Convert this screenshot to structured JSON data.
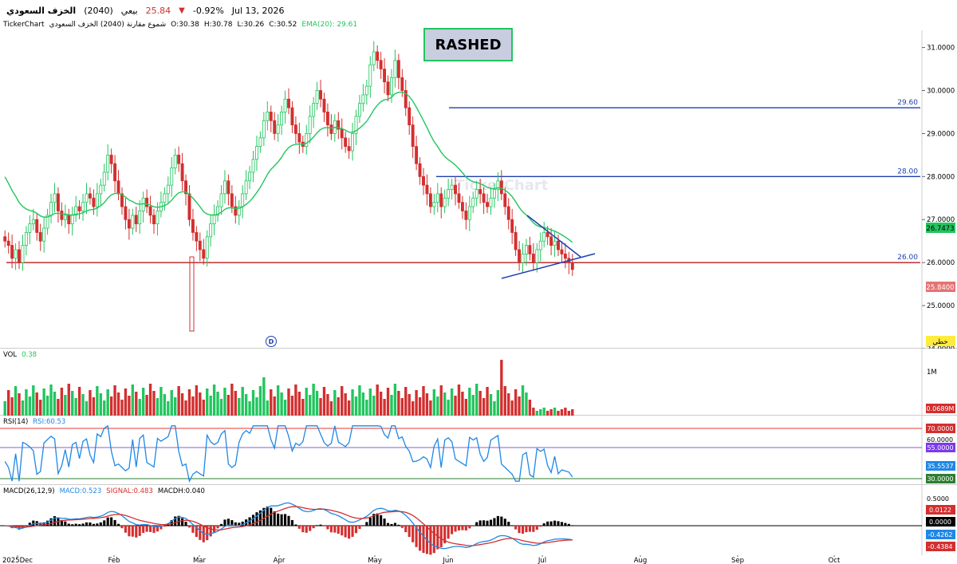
{
  "header": {
    "name": "الخزف السعودي",
    "code": "(2040)",
    "action_label": "بيعي",
    "price": "25.84",
    "change_pct": "-0.92%",
    "date": "Jul 13, 2026"
  },
  "subheader": {
    "source": "TickerChart",
    "series_desc": "شموع مقارنة (2040) الخزف السعودي",
    "open": "O:30.38",
    "high": "H:30.78",
    "low": "L:30.26",
    "close": "C:30.52",
    "ema": "EMA(20): 29.61"
  },
  "annotation": {
    "rashed": "RASHED",
    "d_marker": "D",
    "watermark": "TickerChart"
  },
  "colors": {
    "up": "#22c55e",
    "down": "#d32f2f",
    "ema": "#22c55e",
    "lines": "#1e40af",
    "support": "#b91c1c"
  },
  "price_axis": {
    "ticks": [
      "31.0000",
      "30.0000",
      "29.0000",
      "28.0000",
      "27.0000",
      "26.0000",
      "25.0000",
      "24.0000"
    ],
    "badges": {
      "ema": "26.7473",
      "last": "25.8400",
      "mode": "خطي"
    }
  },
  "level_labels": [
    "29.60",
    "28.00",
    "26.00"
  ],
  "volume": {
    "label": "VOL",
    "value": "0.38",
    "tick": "1M",
    "badge": "0.0689M"
  },
  "rsi": {
    "label": "RSI(14)",
    "value": "RSI:60.53",
    "ticks": [
      "70.0000",
      "60.0000",
      "55.0000",
      "35.5537",
      "30.0000"
    ]
  },
  "macd": {
    "label": "MACD(26,12,9)",
    "macd_value": "MACD:0.523",
    "signal_value": "SIGNAL:0.483",
    "hist_value": "MACDH:0.040",
    "ticks": [
      "0.5000",
      "0.0122",
      "0.0000",
      "-0.4262",
      "-0.4384"
    ]
  },
  "time_axis": [
    "2025Dec",
    "Feb",
    "Mar",
    "Apr",
    "May",
    "Jun",
    "Jul",
    "Aug",
    "Sep",
    "Oct"
  ],
  "chart_data": {
    "type": "candlestick",
    "title": "",
    "ylim": [
      24.0,
      31.4
    ],
    "lines": {
      "resistance_1": 29.6,
      "resistance_2": 28.0,
      "support": 26.0
    },
    "closes": [
      26.5,
      26.4,
      26.1,
      26.3,
      26.0,
      26.4,
      26.7,
      26.9,
      27.0,
      26.7,
      26.5,
      26.8,
      27.1,
      27.4,
      27.6,
      27.2,
      27.0,
      27.1,
      26.9,
      27.1,
      27.3,
      27.2,
      27.4,
      27.6,
      27.5,
      27.3,
      27.6,
      27.8,
      28.1,
      28.5,
      28.3,
      27.9,
      27.6,
      27.3,
      27.0,
      26.8,
      27.1,
      26.9,
      27.2,
      27.5,
      27.3,
      27.1,
      26.9,
      27.2,
      27.4,
      27.6,
      27.8,
      28.2,
      28.5,
      28.3,
      27.9,
      27.6,
      27.0,
      26.7,
      26.5,
      26.3,
      26.1,
      26.6,
      26.9,
      27.1,
      27.3,
      27.6,
      27.9,
      27.6,
      27.3,
      27.1,
      27.3,
      27.6,
      27.9,
      28.1,
      28.4,
      28.7,
      28.9,
      29.3,
      29.5,
      29.3,
      29.0,
      29.2,
      29.5,
      29.8,
      29.6,
      29.2,
      29.0,
      28.8,
      28.7,
      29.0,
      29.4,
      29.7,
      30.0,
      29.8,
      29.5,
      29.2,
      29.0,
      29.3,
      29.1,
      28.9,
      28.7,
      28.6,
      29.0,
      29.4,
      29.7,
      29.9,
      30.1,
      30.6,
      30.9,
      30.7,
      30.5,
      30.2,
      29.9,
      30.3,
      30.7,
      30.3,
      30.0,
      29.6,
      29.2,
      28.7,
      28.3,
      28.0,
      27.8,
      27.6,
      27.3,
      27.4,
      27.6,
      27.3,
      27.5,
      27.7,
      27.8,
      27.6,
      27.4,
      27.2,
      27.0,
      27.3,
      27.5,
      27.7,
      27.6,
      27.4,
      27.3,
      27.5,
      27.7,
      27.9,
      27.6,
      27.3,
      27.0,
      26.7,
      26.3,
      26.0,
      26.2,
      26.4,
      26.2,
      26.0,
      26.3,
      26.5,
      26.7,
      26.6,
      26.4,
      26.5,
      26.3,
      26.2,
      26.1,
      26.0,
      25.84
    ],
    "ema20_start": 28.15,
    "volume_first": 0.38,
    "volume_last": 0.0689,
    "rsi_last": 35.5537,
    "macd_last": -0.4262,
    "signal_last": -0.4384
  }
}
